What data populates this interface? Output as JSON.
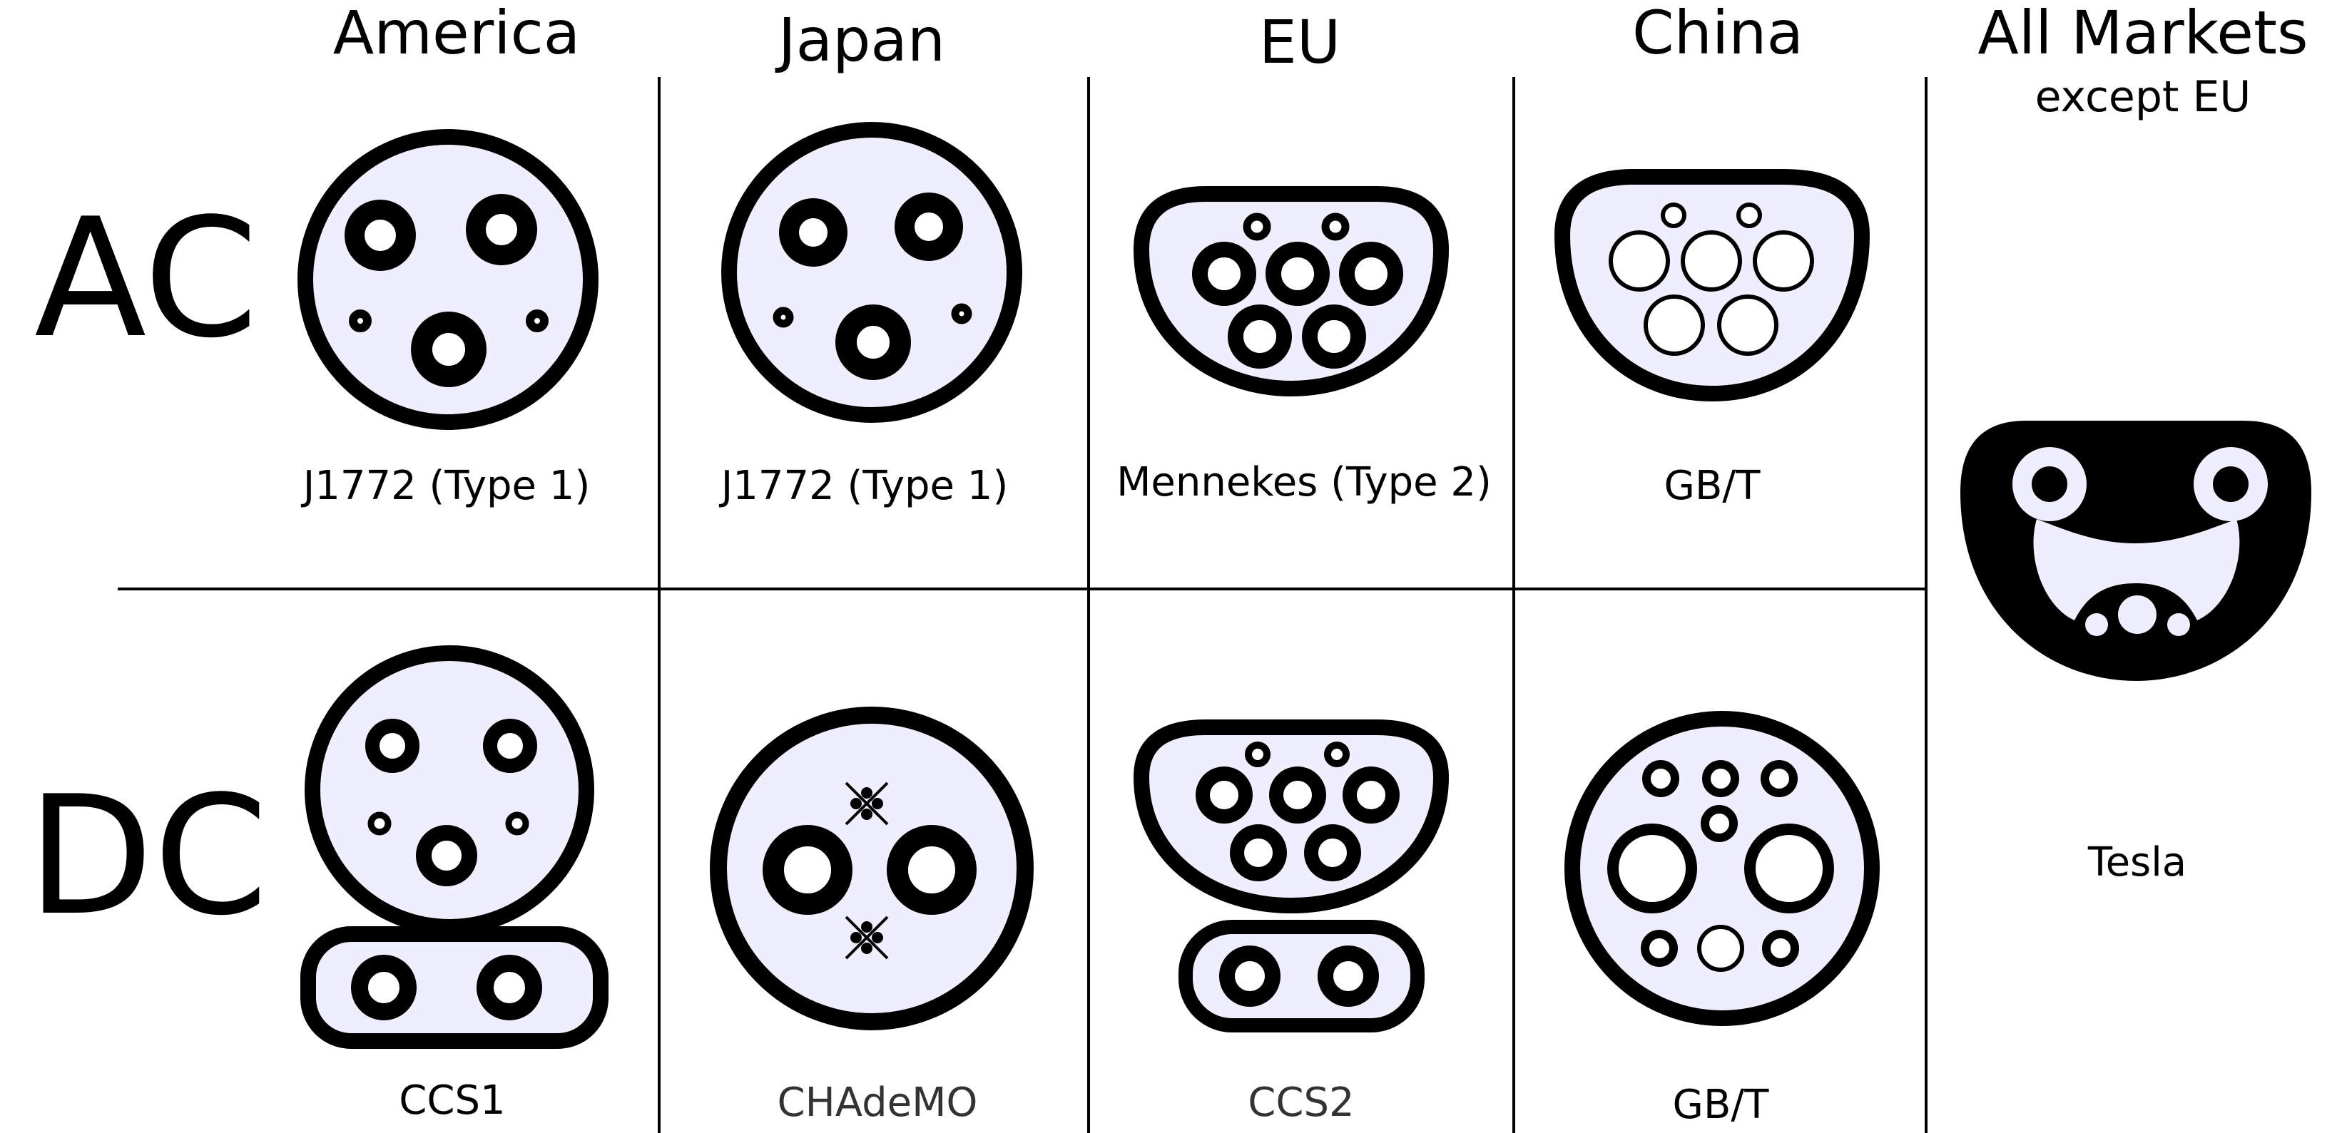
{
  "columns": [
    {
      "title": "America"
    },
    {
      "title": "Japan"
    },
    {
      "title": "EU"
    },
    {
      "title": "China"
    },
    {
      "title": "All Markets",
      "subtitle": "except EU"
    }
  ],
  "rows": {
    "ac": "AC",
    "dc": "DC"
  },
  "connectors": {
    "america_ac": "J1772 (Type 1)",
    "japan_ac": "J1772 (Type 1)",
    "eu_ac": "Mennekes (Type 2)",
    "china_ac": "GB/T",
    "america_dc": "CCS1",
    "japan_dc": "CHAdeMO",
    "eu_dc": "CCS2",
    "china_dc": "GB/T",
    "all_markets": "Tesla"
  },
  "colors": {
    "socket_fill": "#eeeefc",
    "outline": "#000000",
    "pin_fill": "#ffffff"
  }
}
